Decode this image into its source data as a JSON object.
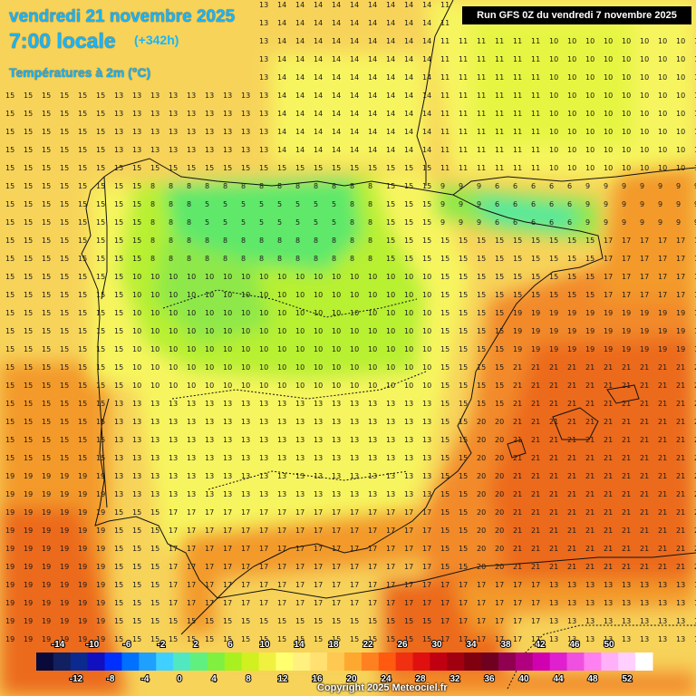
{
  "header": {
    "date_line": "vendredi 21 novembre 2025",
    "time_line": "7:00 locale",
    "lead_time": "(+342h)",
    "variable": "Températures à 2m (°C)",
    "run_info": "Run GFS 0Z du vendredi 7 novembre 2025"
  },
  "footer": {
    "copyright": "Copyright 2025 Meteociel.fr"
  },
  "map": {
    "region": "Iberian Peninsula",
    "variable_unit": "°C",
    "grid_values_note": "Temperature value printed at each grid node, ranging roughly 5 to 21 °C",
    "colors": {
      "cold_plateau": "#5ee86a",
      "cool": "#b8f030",
      "mild": "#f7f55e",
      "warm": "#f7d35a",
      "hot": "#f39a2a",
      "hotter": "#ec6a1e",
      "sea_warm": "#f28a2c"
    }
  },
  "legend": {
    "top_labels": [
      "-14",
      "-10",
      "-6",
      "-2",
      "2",
      "6",
      "10",
      "14",
      "18",
      "22",
      "26",
      "30",
      "34",
      "38",
      "42",
      "46",
      "50"
    ],
    "bottom_labels": [
      "-12",
      "-8",
      "-4",
      "0",
      "4",
      "8",
      "12",
      "16",
      "20",
      "24",
      "28",
      "32",
      "36",
      "40",
      "44",
      "48",
      "52"
    ],
    "colors": [
      "#0a0a3a",
      "#102060",
      "#0a2a90",
      "#1010c0",
      "#0030ff",
      "#0070ff",
      "#1ea0ff",
      "#40d0ff",
      "#50e8c0",
      "#60f080",
      "#80f040",
      "#a8f020",
      "#d0f020",
      "#f0f040",
      "#ffff70",
      "#fff080",
      "#ffe070",
      "#ffc850",
      "#ffa830",
      "#ff8020",
      "#ff5a10",
      "#f03010",
      "#e01010",
      "#c00010",
      "#a00010",
      "#800010",
      "#700020",
      "#900050",
      "#b00080",
      "#d000b0",
      "#e020d0",
      "#f050e0",
      "#ff80f0",
      "#ffb0f8",
      "#ffd0ff",
      "#ffffff"
    ]
  }
}
